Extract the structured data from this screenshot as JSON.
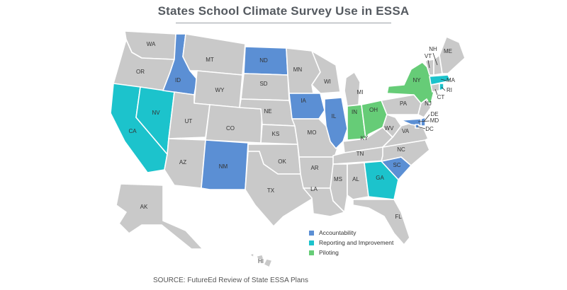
{
  "title": "States School Climate Survey Use in ESSA",
  "source": "SOURCE: FutureEd Review of State ESSA Plans",
  "colors": {
    "default": "#c9c9c9",
    "accountability": "#5b8fd4",
    "reporting": "#1cc3cc",
    "piloting": "#66cc77"
  },
  "legend": [
    {
      "label": "Accountability",
      "category": "accountability"
    },
    {
      "label": "Reporting and Improvement",
      "category": "reporting"
    },
    {
      "label": "Piloting",
      "category": "piloting"
    }
  ],
  "states": [
    {
      "abbr": "WA",
      "category": "default"
    },
    {
      "abbr": "OR",
      "category": "default"
    },
    {
      "abbr": "CA",
      "category": "reporting"
    },
    {
      "abbr": "NV",
      "category": "reporting"
    },
    {
      "abbr": "ID",
      "category": "accountability"
    },
    {
      "abbr": "MT",
      "category": "default"
    },
    {
      "abbr": "WY",
      "category": "default"
    },
    {
      "abbr": "UT",
      "category": "default"
    },
    {
      "abbr": "AZ",
      "category": "default"
    },
    {
      "abbr": "CO",
      "category": "default"
    },
    {
      "abbr": "NM",
      "category": "accountability"
    },
    {
      "abbr": "ND",
      "category": "accountability"
    },
    {
      "abbr": "SD",
      "category": "default"
    },
    {
      "abbr": "NE",
      "category": "default"
    },
    {
      "abbr": "KS",
      "category": "default"
    },
    {
      "abbr": "OK",
      "category": "default"
    },
    {
      "abbr": "TX",
      "category": "default"
    },
    {
      "abbr": "MN",
      "category": "default"
    },
    {
      "abbr": "IA",
      "category": "accountability"
    },
    {
      "abbr": "MO",
      "category": "default"
    },
    {
      "abbr": "AR",
      "category": "default"
    },
    {
      "abbr": "LA",
      "category": "default"
    },
    {
      "abbr": "WI",
      "category": "default"
    },
    {
      "abbr": "IL",
      "category": "accountability"
    },
    {
      "abbr": "MI",
      "category": "default"
    },
    {
      "abbr": "IN",
      "category": "piloting"
    },
    {
      "abbr": "OH",
      "category": "piloting"
    },
    {
      "abbr": "KY",
      "category": "default"
    },
    {
      "abbr": "TN",
      "category": "default"
    },
    {
      "abbr": "MS",
      "category": "default"
    },
    {
      "abbr": "AL",
      "category": "default"
    },
    {
      "abbr": "GA",
      "category": "reporting"
    },
    {
      "abbr": "FL",
      "category": "default"
    },
    {
      "abbr": "SC",
      "category": "accountability"
    },
    {
      "abbr": "NC",
      "category": "default"
    },
    {
      "abbr": "VA",
      "category": "default"
    },
    {
      "abbr": "WV",
      "category": "default"
    },
    {
      "abbr": "PA",
      "category": "default"
    },
    {
      "abbr": "NY",
      "category": "piloting"
    },
    {
      "abbr": "NJ",
      "category": "default"
    },
    {
      "abbr": "DE",
      "category": "accountability"
    },
    {
      "abbr": "MD",
      "category": "accountability"
    },
    {
      "abbr": "DC",
      "category": "accountability"
    },
    {
      "abbr": "VT",
      "category": "default"
    },
    {
      "abbr": "NH",
      "category": "default"
    },
    {
      "abbr": "ME",
      "category": "default"
    },
    {
      "abbr": "MA",
      "category": "reporting"
    },
    {
      "abbr": "CT",
      "category": "default"
    },
    {
      "abbr": "RI",
      "category": "reporting"
    },
    {
      "abbr": "AK",
      "category": "default"
    },
    {
      "abbr": "HI",
      "category": "default"
    }
  ]
}
